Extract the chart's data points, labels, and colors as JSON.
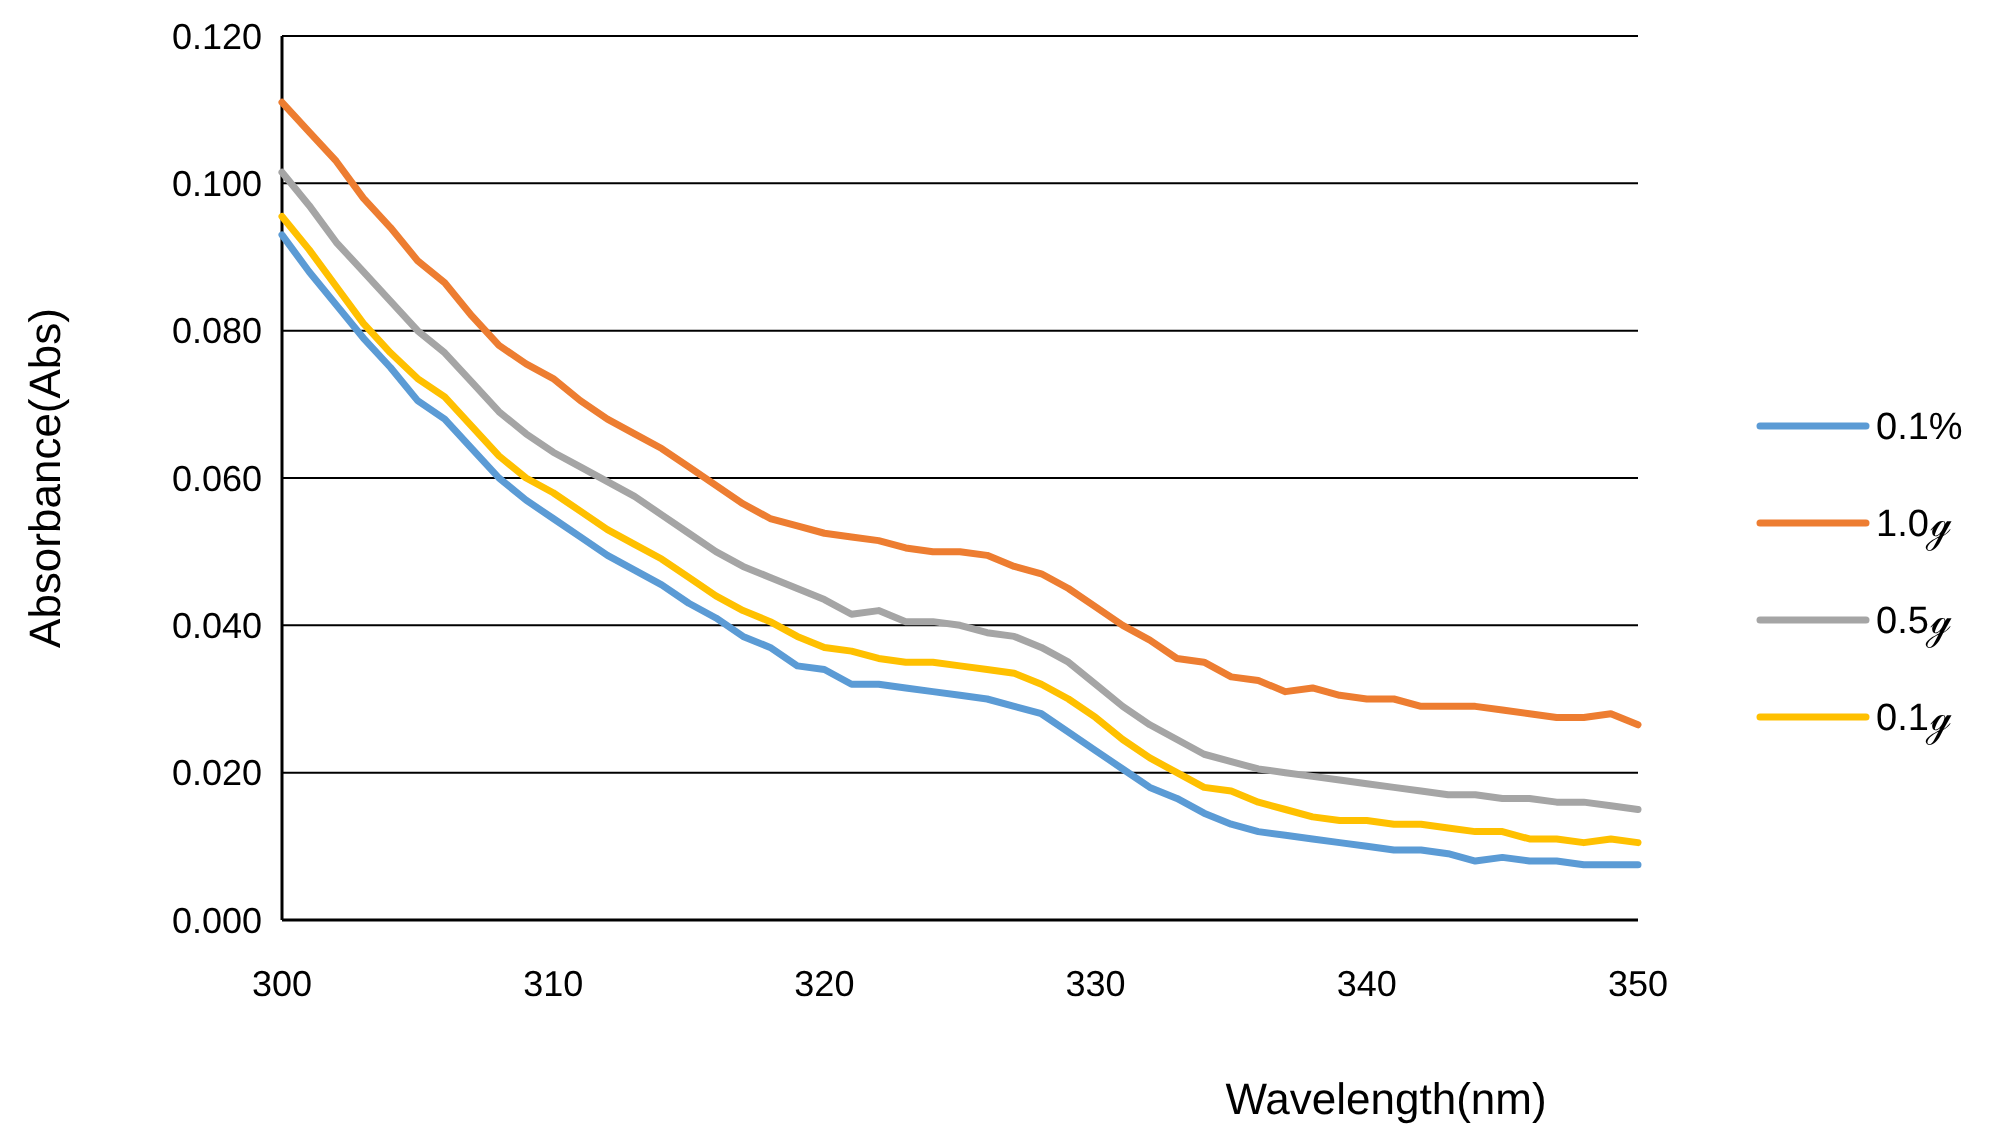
{
  "chart_data": {
    "type": "line",
    "xlabel": "Wavelength(nm)",
    "ylabel": "Absorbance(Abs)",
    "x": [
      300,
      301,
      302,
      303,
      304,
      305,
      306,
      307,
      308,
      309,
      310,
      311,
      312,
      313,
      314,
      315,
      316,
      317,
      318,
      319,
      320,
      321,
      322,
      323,
      324,
      325,
      326,
      327,
      328,
      329,
      330,
      331,
      332,
      333,
      334,
      335,
      336,
      337,
      338,
      339,
      340,
      341,
      342,
      343,
      344,
      345,
      346,
      347,
      348,
      349,
      350
    ],
    "series": [
      {
        "name": "0.1%",
        "color": "#5b9bd5",
        "values": [
          0.093,
          0.088,
          0.0835,
          0.079,
          0.075,
          0.0705,
          0.068,
          0.064,
          0.06,
          0.057,
          0.0545,
          0.052,
          0.0495,
          0.0475,
          0.0455,
          0.043,
          0.041,
          0.0385,
          0.037,
          0.0345,
          0.034,
          0.032,
          0.032,
          0.0315,
          0.031,
          0.0305,
          0.03,
          0.029,
          0.028,
          0.0255,
          0.023,
          0.0205,
          0.018,
          0.0165,
          0.0145,
          0.013,
          0.012,
          0.0115,
          0.011,
          0.0105,
          0.01,
          0.0095,
          0.0095,
          0.009,
          0.008,
          0.0085,
          0.008,
          0.008,
          0.0075,
          0.0075,
          0.0075
        ]
      },
      {
        "name": "1.0ℊ",
        "color": "#ed7d31",
        "values": [
          0.111,
          0.107,
          0.103,
          0.098,
          0.094,
          0.0895,
          0.0865,
          0.082,
          0.078,
          0.0755,
          0.0735,
          0.0705,
          0.068,
          0.066,
          0.064,
          0.0615,
          0.059,
          0.0565,
          0.0545,
          0.0535,
          0.0525,
          0.052,
          0.0515,
          0.0505,
          0.05,
          0.05,
          0.0495,
          0.048,
          0.047,
          0.045,
          0.0425,
          0.04,
          0.038,
          0.0355,
          0.035,
          0.033,
          0.0325,
          0.031,
          0.0315,
          0.0305,
          0.03,
          0.03,
          0.029,
          0.029,
          0.029,
          0.0285,
          0.028,
          0.0275,
          0.0275,
          0.028,
          0.0265
        ]
      },
      {
        "name": "0.5ℊ",
        "color": "#a5a5a5",
        "values": [
          0.1015,
          0.097,
          0.092,
          0.088,
          0.084,
          0.08,
          0.077,
          0.073,
          0.069,
          0.066,
          0.0635,
          0.0615,
          0.0595,
          0.0575,
          0.055,
          0.0525,
          0.05,
          0.048,
          0.0465,
          0.045,
          0.0435,
          0.0415,
          0.042,
          0.0405,
          0.0405,
          0.04,
          0.039,
          0.0385,
          0.037,
          0.035,
          0.032,
          0.029,
          0.0265,
          0.0245,
          0.0225,
          0.0215,
          0.0205,
          0.02,
          0.0195,
          0.019,
          0.0185,
          0.018,
          0.0175,
          0.017,
          0.017,
          0.0165,
          0.0165,
          0.016,
          0.016,
          0.0155,
          0.015
        ]
      },
      {
        "name": "0.1ℊ",
        "color": "#ffc000",
        "values": [
          0.0955,
          0.091,
          0.086,
          0.081,
          0.077,
          0.0735,
          0.071,
          0.067,
          0.063,
          0.06,
          0.058,
          0.0555,
          0.053,
          0.051,
          0.049,
          0.0465,
          0.044,
          0.042,
          0.0405,
          0.0385,
          0.037,
          0.0365,
          0.0355,
          0.035,
          0.035,
          0.0345,
          0.034,
          0.0335,
          0.032,
          0.03,
          0.0275,
          0.0245,
          0.022,
          0.02,
          0.018,
          0.0175,
          0.016,
          0.015,
          0.014,
          0.0135,
          0.0135,
          0.013,
          0.013,
          0.0125,
          0.012,
          0.012,
          0.011,
          0.011,
          0.0105,
          0.011,
          0.0105
        ]
      }
    ],
    "xlim": [
      300,
      350
    ],
    "xticks": [
      300,
      310,
      320,
      330,
      340,
      350
    ],
    "ylim": [
      0,
      0.12
    ],
    "yticks": [
      {
        "value": 0,
        "label": "0.000"
      },
      {
        "value": 0.02,
        "label": "0.020"
      },
      {
        "value": 0.04,
        "label": "0.040"
      },
      {
        "value": 0.06,
        "label": "0.060"
      },
      {
        "value": 0.08,
        "label": "0.080"
      },
      {
        "value": 0.1,
        "label": "0.100"
      },
      {
        "value": 0.12,
        "label": "0.120"
      }
    ],
    "grid": "y",
    "legend": "right",
    "marker": "none",
    "line_style": "solid"
  }
}
